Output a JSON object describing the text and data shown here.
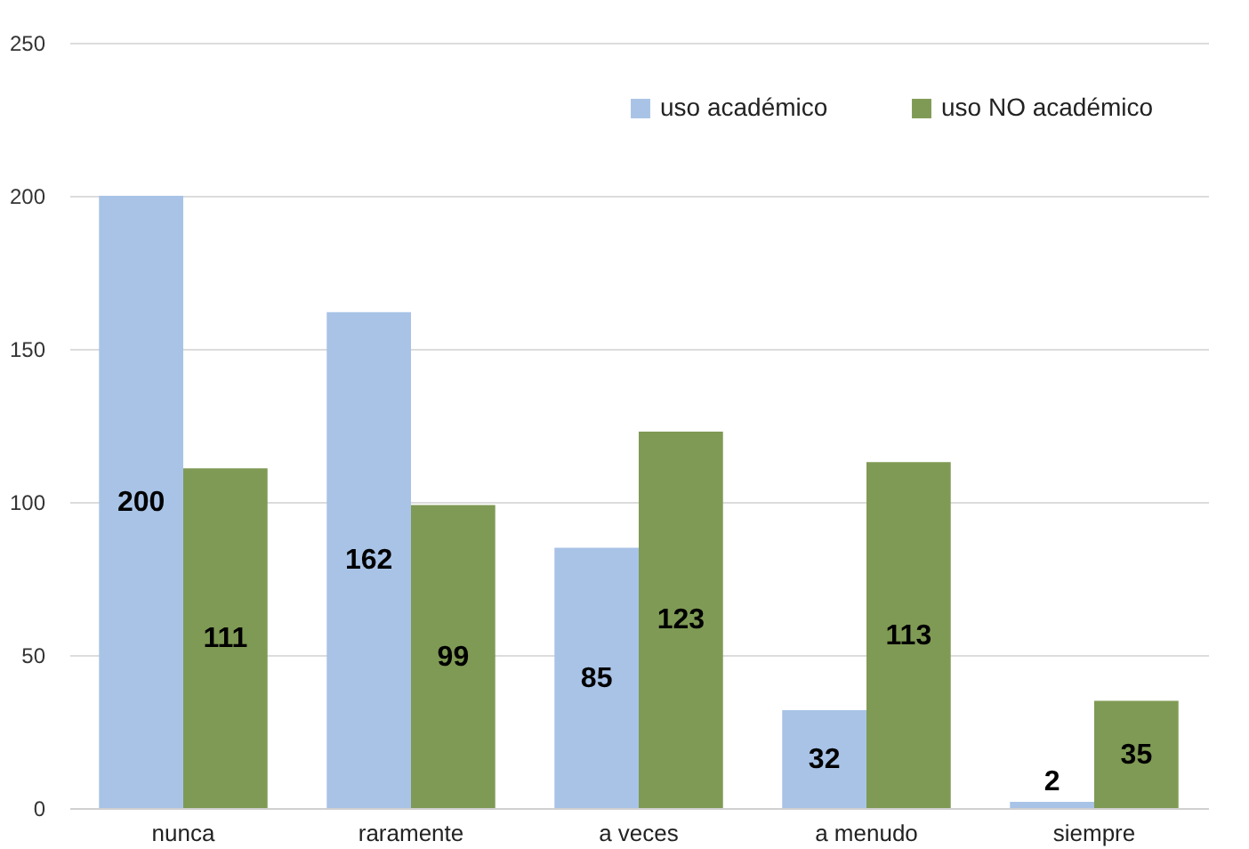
{
  "chart_data": {
    "type": "bar",
    "categories": [
      "nunca",
      "raramente",
      "a veces",
      "a menudo",
      "siempre"
    ],
    "series": [
      {
        "name": "uso académico",
        "color": "#a8c3e6",
        "values": [
          200,
          162,
          85,
          32,
          2
        ]
      },
      {
        "name": "uso NO académico",
        "color": "#7f9a54",
        "values": [
          111,
          99,
          123,
          113,
          35
        ]
      }
    ],
    "ylim": [
      0,
      250
    ],
    "yticks": [
      0,
      50,
      100,
      150,
      200,
      250
    ],
    "grid": "y",
    "legend": "top right",
    "data_labels": true
  }
}
